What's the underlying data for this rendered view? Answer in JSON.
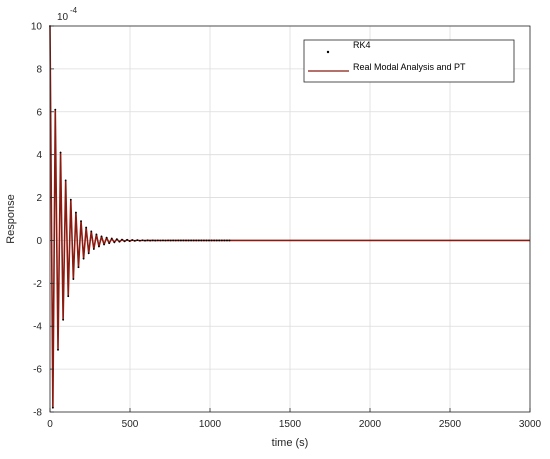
{
  "chart_data": {
    "type": "line",
    "xlabel": "time (s)",
    "ylabel": "Response",
    "y_exponent_base": "10",
    "y_exponent_power": "-4",
    "xlim": [
      0,
      3000
    ],
    "ylim": [
      -8,
      10
    ],
    "x_ticks": [
      "0",
      "500",
      "1000",
      "1500",
      "2000",
      "2500",
      "3000"
    ],
    "y_ticks": [
      "-8",
      "-6",
      "-4",
      "-2",
      "0",
      "2",
      "4",
      "6",
      "8",
      "10"
    ],
    "x_tick_values": [
      0,
      500,
      1000,
      1500,
      2000,
      2500,
      3000
    ],
    "y_tick_values": [
      -8,
      -6,
      -4,
      -2,
      0,
      2,
      4,
      6,
      8,
      10
    ],
    "grid": true,
    "legend_position": "top-right",
    "colors": {
      "line": "#8b1a10",
      "dots": "#000000",
      "grid": "#dcdcdc",
      "axis": "#262626"
    },
    "series": [
      {
        "name": "RK4",
        "style": "dots",
        "x": [
          0,
          18,
          33,
          50,
          66,
          82,
          98,
          114,
          130,
          146,
          162,
          178,
          194,
          210,
          226,
          242,
          258,
          274,
          290,
          306,
          322,
          338,
          354,
          370,
          386,
          402,
          418,
          434,
          450,
          466,
          482,
          498,
          514,
          530,
          546,
          562,
          578,
          594,
          610,
          626,
          642,
          658,
          674,
          690,
          706,
          722,
          738,
          754,
          770,
          786,
          802,
          818,
          834,
          850,
          866,
          882,
          898,
          914,
          930,
          946,
          962,
          978,
          994,
          1010,
          1026,
          1042,
          1058,
          1074,
          1090,
          1106,
          1122
        ],
        "y": [
          10,
          -7.8,
          6.1,
          -5.1,
          4.1,
          -3.7,
          2.8,
          -2.6,
          1.9,
          -1.8,
          1.3,
          -1.25,
          0.9,
          -0.85,
          0.6,
          -0.6,
          0.42,
          -0.4,
          0.28,
          -0.28,
          0.19,
          -0.19,
          0.13,
          -0.13,
          0.09,
          -0.09,
          0.06,
          -0.06,
          0.04,
          -0.04,
          0.03,
          -0.03,
          0.02,
          -0.02,
          0.015,
          -0.015,
          0.01,
          -0.01,
          0.007,
          -0.007,
          0.005,
          -0.005,
          0.003,
          -0.003,
          0.002,
          -0.002,
          0.0015,
          -0.0015,
          0.001,
          -0.001,
          0.0007,
          -0.0007,
          0.0005,
          -0.0005,
          0.0003,
          -0.0003,
          0.0002,
          -0.0002,
          0.0001,
          -0.0001,
          0,
          0,
          0,
          0,
          0,
          0,
          0,
          0,
          0,
          0,
          0
        ]
      },
      {
        "name": "Real Modal Analysis and PT",
        "style": "line",
        "x": [
          0,
          18,
          33,
          50,
          66,
          82,
          98,
          114,
          130,
          146,
          162,
          178,
          194,
          210,
          226,
          242,
          258,
          274,
          290,
          306,
          322,
          338,
          354,
          370,
          386,
          402,
          418,
          434,
          450,
          466,
          482,
          498,
          514,
          530,
          546,
          562,
          578,
          594,
          610,
          626,
          642,
          658,
          674,
          690,
          706,
          722,
          738,
          754,
          770,
          786,
          802,
          818,
          834,
          850,
          866,
          882,
          898,
          914,
          930,
          946,
          962,
          978,
          994,
          1010,
          1026,
          1042,
          1058,
          1074,
          1090,
          1106,
          1122,
          1500,
          2000,
          2500,
          3000
        ],
        "y": [
          10,
          -7.8,
          6.1,
          -5.1,
          4.1,
          -3.7,
          2.8,
          -2.6,
          1.9,
          -1.8,
          1.3,
          -1.25,
          0.9,
          -0.85,
          0.6,
          -0.6,
          0.42,
          -0.4,
          0.28,
          -0.28,
          0.19,
          -0.19,
          0.13,
          -0.13,
          0.09,
          -0.09,
          0.06,
          -0.06,
          0.04,
          -0.04,
          0.03,
          -0.03,
          0.02,
          -0.02,
          0.015,
          -0.015,
          0.01,
          -0.01,
          0.007,
          -0.007,
          0.005,
          -0.005,
          0.003,
          -0.003,
          0.002,
          -0.002,
          0.0015,
          -0.0015,
          0.001,
          -0.001,
          0.0007,
          -0.0007,
          0.0005,
          -0.0005,
          0.0003,
          -0.0003,
          0.0002,
          -0.0002,
          0.0001,
          -0.0001,
          0,
          0,
          0,
          0,
          0,
          0,
          0,
          0,
          0,
          0,
          0,
          0,
          0,
          0,
          0
        ]
      }
    ]
  }
}
